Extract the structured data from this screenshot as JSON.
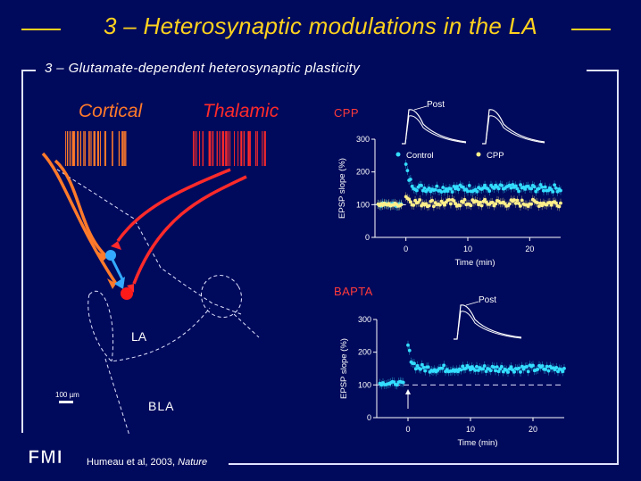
{
  "title": "3 – Heterosynaptic modulations in the LA",
  "subtitle": "3 – Glutamate-dependent heterosynaptic plasticity",
  "diagram": {
    "cortical_label": "Cortical",
    "thalamic_label": "Thalamic",
    "la_label": "LA",
    "bla_label": "BLA",
    "scale_label": "100 µm"
  },
  "citation": {
    "authors": "Humeau et al, 2003,",
    "journal": "Nature"
  },
  "logo_text": "FMI",
  "colors": {
    "background": "#000a5c",
    "title": "#ffd21e",
    "cortical": "#ff7a2a",
    "thalamic": "#ff2a2a",
    "control": "#33ddff",
    "cpp": "#ffef8a"
  },
  "chart_data": [
    {
      "type": "scatter",
      "panel_title": "CPP",
      "ylabel": "EPSP slope (%)",
      "xlabel": "Time (min)",
      "xlim": [
        -5,
        25
      ],
      "ylim": [
        0,
        300
      ],
      "xticks": [
        0,
        10,
        20
      ],
      "yticks": [
        0,
        100,
        200,
        300
      ],
      "inset_label": "Post",
      "legend": [
        "Control",
        "CPP"
      ],
      "series": [
        {
          "name": "Control",
          "color": "#33ddff",
          "baseline": 100,
          "peak": 220,
          "plateau": 150
        },
        {
          "name": "CPP",
          "color": "#ffef8a",
          "baseline": 100,
          "peak": 130,
          "plateau": 105
        }
      ]
    },
    {
      "type": "scatter",
      "panel_title": "BAPTA",
      "ylabel": "EPSP slope (%)",
      "xlabel": "Time (min)",
      "xlim": [
        -5,
        25
      ],
      "ylim": [
        0,
        300
      ],
      "xticks": [
        0,
        10,
        20
      ],
      "yticks": [
        0,
        100,
        200,
        300
      ],
      "inset_label": "Post",
      "reference_line": 100,
      "series": [
        {
          "name": "",
          "color": "#33ddff",
          "baseline": 105,
          "peak": 220,
          "plateau": 150
        }
      ]
    }
  ]
}
